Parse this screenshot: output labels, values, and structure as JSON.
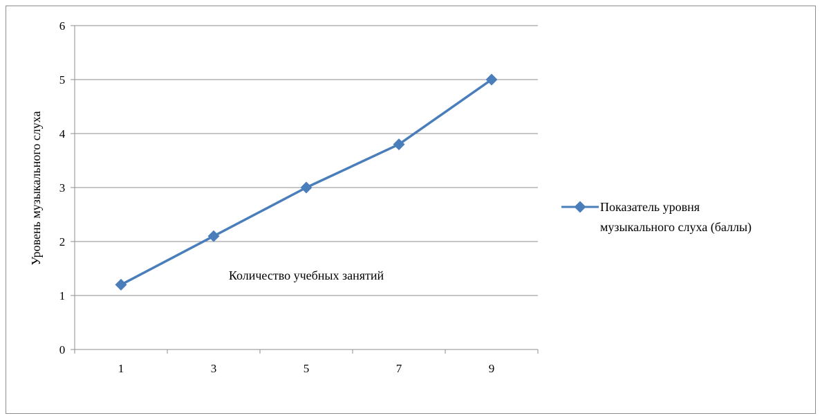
{
  "chart_data": {
    "type": "line",
    "categories": [
      "1",
      "3",
      "5",
      "7",
      "9"
    ],
    "series": [
      {
        "name": "Показатель  уровня  музыкального  слуха  (баллы)",
        "name_lines": [
          "Показатель  уровня",
          "музыкального  слуха  (баллы)"
        ],
        "values": [
          1.2,
          2.1,
          3.0,
          3.8,
          5.0
        ],
        "color": "#4a7ebb"
      }
    ],
    "xlabel": "Количество учебных занятий",
    "ylabel": "Уровень музыкального слуха",
    "ylim": [
      0,
      6
    ],
    "yticks": [
      "0",
      "1",
      "2",
      "3",
      "4",
      "5",
      "6"
    ],
    "grid": true,
    "legend": "right"
  }
}
